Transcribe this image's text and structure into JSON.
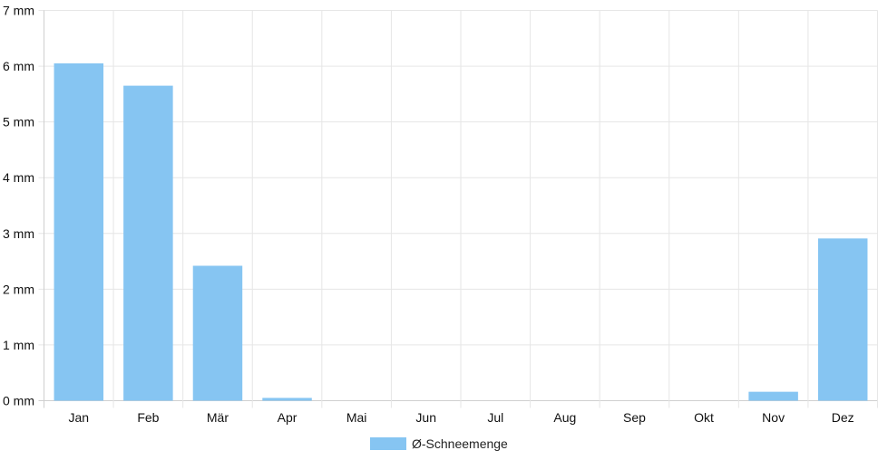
{
  "chart_data": {
    "type": "bar",
    "categories": [
      "Jan",
      "Feb",
      "Mär",
      "Apr",
      "Mai",
      "Jun",
      "Jul",
      "Aug",
      "Sep",
      "Okt",
      "Nov",
      "Dez"
    ],
    "series": [
      {
        "name": "Ø-Schneemenge",
        "values": [
          6.05,
          5.65,
          2.42,
          0.05,
          0,
          0,
          0,
          0,
          0,
          0,
          0.16,
          2.91
        ],
        "color": "#86c5f2"
      }
    ],
    "y_unit": "mm",
    "ylim": [
      0,
      7
    ],
    "yticks": [
      0,
      1,
      2,
      3,
      4,
      5,
      6,
      7
    ],
    "ytick_labels": [
      "0 mm",
      "1 mm",
      "2 mm",
      "3 mm",
      "4 mm",
      "5 mm",
      "6 mm",
      "7 mm"
    ],
    "grid": true,
    "legend_position": "bottom"
  }
}
